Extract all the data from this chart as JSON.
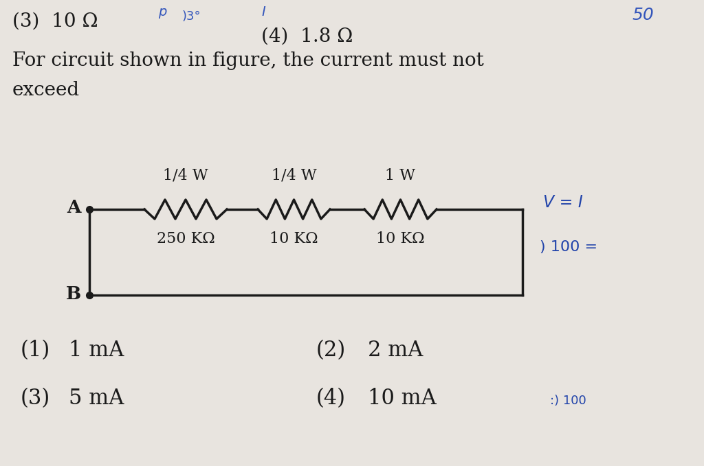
{
  "bg_color": "#e8e4df",
  "title_line1": "For circuit shown in figure, the current must not",
  "title_line2": "exceed",
  "prev_line1": "(3)  10 Ω",
  "prev_line2": "(4)  1.8 Ω",
  "node_A_label": "A",
  "node_B_label": "B",
  "resistors": [
    {
      "label": "1/4 W",
      "sublabel": "250 KΩ"
    },
    {
      "label": "1/4 W",
      "sublabel": "10 KΩ"
    },
    {
      "label": "1 W",
      "sublabel": "10 KΩ"
    }
  ],
  "options": [
    {
      "num": "(1)",
      "text": "1 mA"
    },
    {
      "num": "(2)",
      "text": "2 mA"
    },
    {
      "num": "(3)",
      "text": "5 mA"
    },
    {
      "num": "(4)",
      "text": "10 mA"
    }
  ],
  "text_color": "#1a1a1a",
  "circuit_color": "#1a1a1a",
  "font_size_body": 20,
  "font_size_options": 22,
  "font_size_circuit": 16,
  "font_size_small": 14
}
